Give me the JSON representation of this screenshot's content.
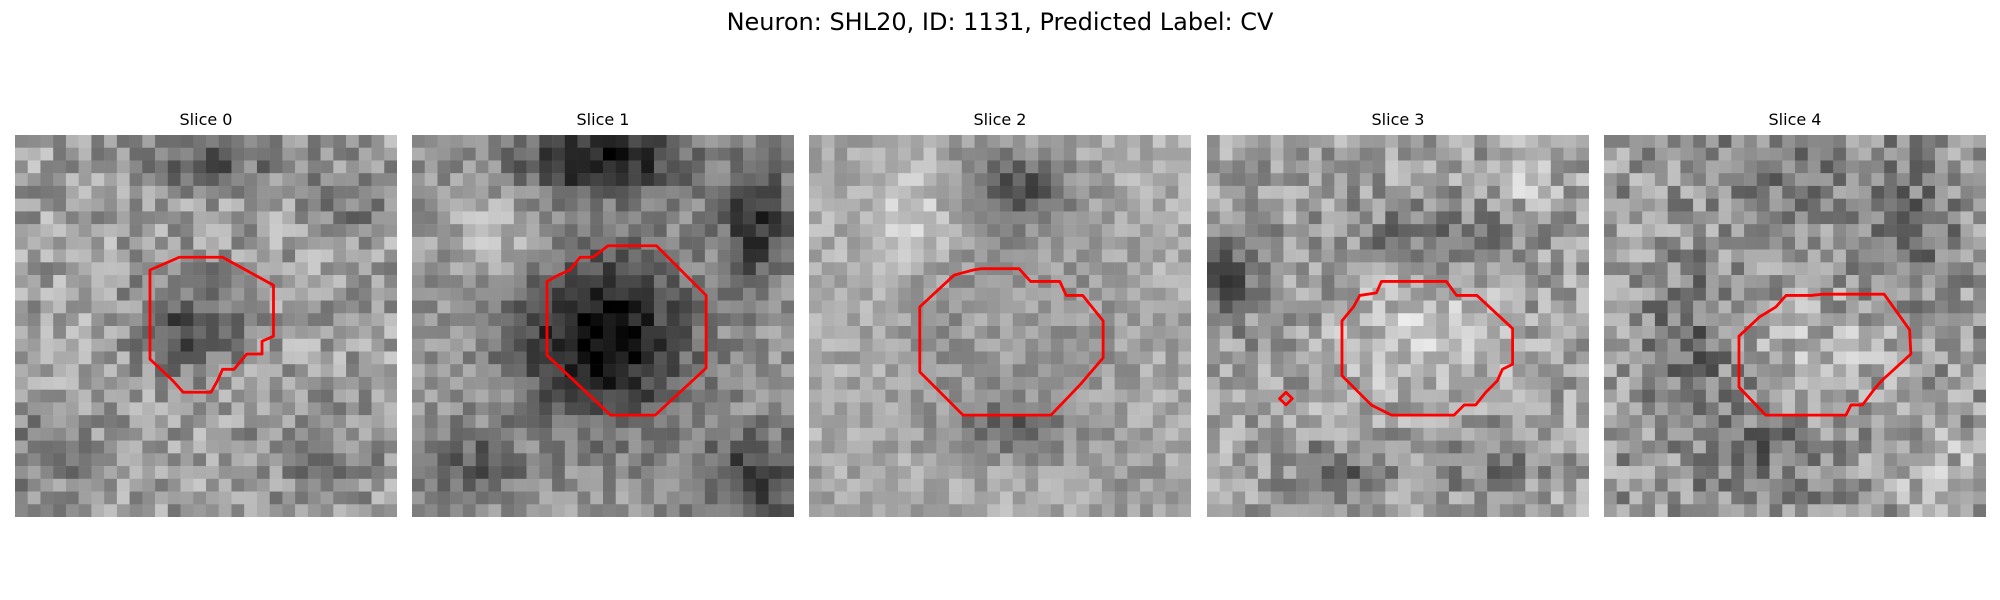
{
  "figure": {
    "title": "Neuron: SHL20, ID: 1131, Predicted Label: CV"
  },
  "colors": {
    "contour": "#ff0000",
    "background": "#ffffff"
  },
  "panels": [
    {
      "title": "Slice 0"
    },
    {
      "title": "Slice 1"
    },
    {
      "title": "Slice 2"
    },
    {
      "title": "Slice 3"
    },
    {
      "title": "Slice 4"
    }
  ]
}
